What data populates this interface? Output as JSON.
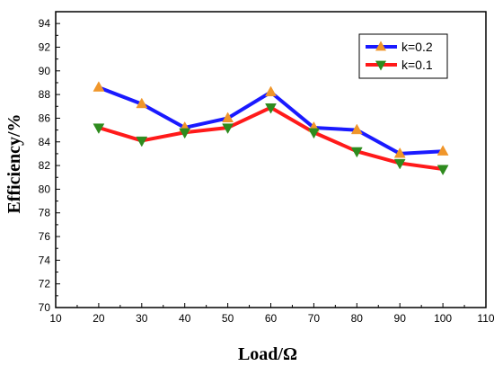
{
  "chart_data": {
    "type": "line",
    "title": "",
    "xlabel": "Load/Ω",
    "ylabel": "Efficiency/%",
    "xlim": [
      10,
      110
    ],
    "ylim": [
      70,
      95
    ],
    "xticks": [
      10,
      20,
      30,
      40,
      50,
      60,
      70,
      80,
      90,
      100,
      110
    ],
    "yticks": [
      70,
      72,
      74,
      76,
      78,
      80,
      82,
      84,
      86,
      88,
      90,
      92,
      94
    ],
    "x": [
      20,
      30,
      40,
      50,
      60,
      70,
      80,
      90,
      100
    ],
    "grid": false,
    "legend_position": "top-right",
    "series": [
      {
        "name": "k=0.2",
        "values": [
          88.6,
          87.2,
          85.2,
          86.0,
          88.2,
          85.2,
          85.0,
          83.0,
          83.2
        ],
        "line_color": "#1a1aff",
        "marker": "triangle-up",
        "marker_color": "#f0962a"
      },
      {
        "name": "k=0.1",
        "values": [
          85.2,
          84.1,
          84.8,
          85.2,
          86.9,
          84.8,
          83.2,
          82.2,
          81.7
        ],
        "line_color": "#ff1a1a",
        "marker": "triangle-down",
        "marker_color": "#2e8b1e"
      }
    ]
  }
}
